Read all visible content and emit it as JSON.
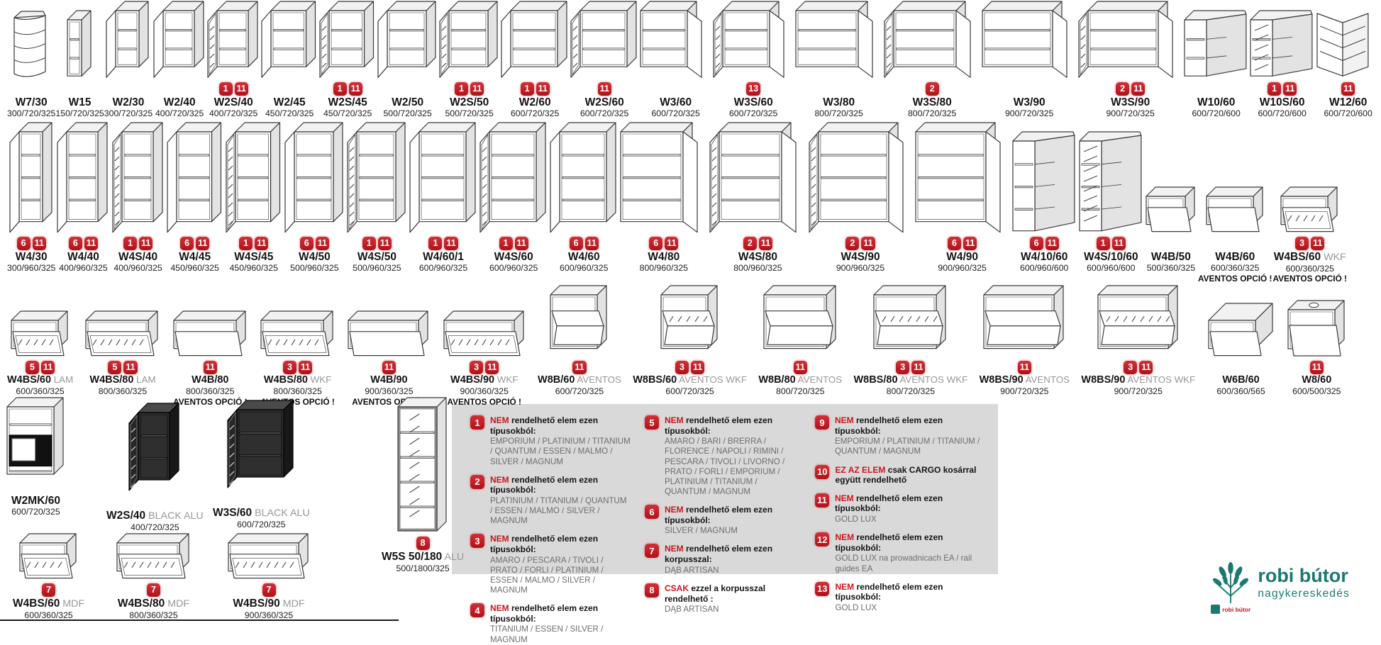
{
  "badge_color": "#c8161d",
  "legend_bg": "#d9d9d9",
  "aventos_note": "AVENTOS OPCIÓ !",
  "rows": [
    {
      "name": "wall-cabinets-row-1",
      "items": [
        {
          "label": "W7/30",
          "dims": "300/720/325",
          "badges": [],
          "kind": "corner-round"
        },
        {
          "label": "W15",
          "dims": "150/720/325",
          "badges": [],
          "kind": "open"
        },
        {
          "label": "W2/30",
          "dims": "300/720/325",
          "badges": [],
          "kind": "door"
        },
        {
          "label": "W2/40",
          "dims": "400/720/325",
          "badges": [],
          "kind": "door"
        },
        {
          "label": "W2S/40",
          "dims": "400/720/325",
          "badges": [
            1,
            11
          ],
          "kind": "glass"
        },
        {
          "label": "W2/45",
          "dims": "450/720/325",
          "badges": [],
          "kind": "door"
        },
        {
          "label": "W2S/45",
          "dims": "450/720/325",
          "badges": [
            1,
            11
          ],
          "kind": "glass"
        },
        {
          "label": "W2/50",
          "dims": "500/720/325",
          "badges": [],
          "kind": "door"
        },
        {
          "label": "W2S/50",
          "dims": "500/720/325",
          "badges": [
            1,
            11
          ],
          "kind": "glass"
        },
        {
          "label": "W2/60",
          "dims": "600/720/325",
          "badges": [
            1,
            11
          ],
          "kind": "door"
        },
        {
          "label": "W2S/60",
          "dims": "600/720/325",
          "badges": [
            11
          ],
          "kind": "glass"
        },
        {
          "label": "W3/60",
          "dims": "600/720/325",
          "badges": [],
          "kind": "door-r"
        },
        {
          "label": "W3S/60",
          "dims": "600/720/325",
          "badges": [
            13
          ],
          "kind": "glass2"
        },
        {
          "label": "W3/80",
          "dims": "800/720/325",
          "badges": [],
          "kind": "door-r"
        },
        {
          "label": "W3S/80",
          "dims": "800/720/325",
          "badges": [
            2
          ],
          "kind": "glass2"
        },
        {
          "label": "W3/90",
          "dims": "900/720/325",
          "badges": [],
          "kind": "door-r"
        },
        {
          "label": "W3S/90",
          "dims": "900/720/325",
          "badges": [
            2,
            11
          ],
          "kind": "glass2"
        },
        {
          "label": "W10/60",
          "dims": "600/720/600",
          "badges": [],
          "kind": "corner-l"
        },
        {
          "label": "W10S/60",
          "dims": "600/720/600",
          "badges": [
            1,
            11
          ],
          "kind": "corner-l-glass"
        },
        {
          "label": "W12/60",
          "dims": "600/720/600",
          "badges": [
            11
          ],
          "kind": "corner-v"
        }
      ]
    },
    {
      "name": "wall-cabinets-row-2",
      "items": [
        {
          "label": "W4/30",
          "dims": "300/960/325",
          "badges": [
            6,
            11
          ],
          "kind": "door"
        },
        {
          "label": "W4/40",
          "dims": "400/960/325",
          "badges": [
            6,
            11
          ],
          "kind": "door"
        },
        {
          "label": "W4S/40",
          "dims": "400/960/325",
          "badges": [
            1,
            11
          ],
          "kind": "glass"
        },
        {
          "label": "W4/45",
          "dims": "450/960/325",
          "badges": [
            6,
            11
          ],
          "kind": "door"
        },
        {
          "label": "W4S/45",
          "dims": "450/960/325",
          "badges": [
            1,
            11
          ],
          "kind": "glass"
        },
        {
          "label": "W4/50",
          "dims": "500/960/325",
          "badges": [
            6,
            11
          ],
          "kind": "door"
        },
        {
          "label": "W4S/50",
          "dims": "500/960/325",
          "badges": [
            1,
            11
          ],
          "kind": "glass"
        },
        {
          "label": "W4/60/1",
          "dims": "600/960/325",
          "badges": [
            1,
            11
          ],
          "kind": "door"
        },
        {
          "label": "W4S/60",
          "dims": "600/960/325",
          "badges": [
            1,
            11
          ],
          "kind": "glass"
        },
        {
          "label": "W4/60",
          "dims": "600/960/325",
          "badges": [
            6,
            11
          ],
          "kind": "door"
        },
        {
          "label": "W4/80",
          "dims": "800/960/325",
          "badges": [
            6,
            11
          ],
          "kind": "door-r"
        },
        {
          "label": "W4S/80",
          "dims": "800/960/325",
          "badges": [
            2,
            11
          ],
          "kind": "glass2"
        },
        {
          "label": "W4S/90",
          "dims": "900/960/325",
          "badges": [
            2,
            11
          ],
          "kind": "glass2"
        },
        {
          "label": "W4/90",
          "dims": "900/960/325",
          "badges": [
            6,
            11
          ],
          "kind": "door-r"
        },
        {
          "label": "W4/10/60",
          "dims": "600/960/600",
          "badges": [
            6,
            11
          ],
          "kind": "corner-l"
        },
        {
          "label": "W4S/10/60",
          "dims": "600/960/600",
          "badges": [
            1,
            11
          ],
          "kind": "corner-l-glass"
        },
        {
          "label": "W4B/50",
          "dims": "500/360/325",
          "badges": [],
          "kind": "flap"
        },
        {
          "label": "W4B/60",
          "dims": "600/360/325",
          "badges": [],
          "kind": "flap",
          "note": "AVENTOS OPCIÓ !"
        },
        {
          "label": "W4BS/60",
          "suffix": "WKF",
          "dims": "600/360/325",
          "badges": [
            3,
            11
          ],
          "kind": "flap-glass",
          "note": "AVENTOS OPCIÓ !"
        }
      ]
    },
    {
      "name": "wall-cabinets-row-3",
      "items": [
        {
          "label": "W4BS/60",
          "suffix": "LAM",
          "dims": "600/360/325",
          "badges": [
            5,
            11
          ],
          "kind": "flap-glass"
        },
        {
          "label": "W4BS/80",
          "suffix": "LAM",
          "dims": "800/360/325",
          "badges": [
            5,
            11
          ],
          "kind": "flap-glass"
        },
        {
          "label": "W4B/80",
          "dims": "800/360/325",
          "badges": [
            11
          ],
          "kind": "flap",
          "note": "AVENTOS OPCIÓ !"
        },
        {
          "label": "W4BS/80",
          "suffix": "WKF",
          "dims": "800/360/325",
          "badges": [
            3,
            11
          ],
          "kind": "flap-glass",
          "note": "AVENTOS OPCIÓ !"
        },
        {
          "label": "W4B/90",
          "dims": "900/360/325",
          "badges": [
            11
          ],
          "kind": "flap",
          "note": "AVENTOS OPCIÓ !"
        },
        {
          "label": "W4BS/90",
          "suffix": "WKF",
          "dims": "900/360/325",
          "badges": [
            3,
            11
          ],
          "kind": "flap-glass",
          "note": "AVENTOS OPCIÓ !"
        },
        {
          "label": "W8B/60",
          "suffix": "AVENTOS",
          "dims": "600/720/325",
          "badges": [
            11
          ],
          "kind": "aventos"
        },
        {
          "label": "W8BS/60",
          "suffix": "AVENTOS WKF",
          "dims": "600/720/325",
          "badges": [
            3,
            11
          ],
          "kind": "aventos-glass"
        },
        {
          "label": "W8B/80",
          "suffix": "AVENTOS",
          "dims": "800/720/325",
          "badges": [
            11
          ],
          "kind": "aventos"
        },
        {
          "label": "W8BS/80",
          "suffix": "AVENTOS WKF",
          "dims": "800/720/325",
          "badges": [
            3,
            11
          ],
          "kind": "aventos-glass"
        },
        {
          "label": "W8BS/90",
          "suffix": "AVENTOS",
          "dims": "900/720/325",
          "badges": [
            11
          ],
          "kind": "aventos"
        },
        {
          "label": "W8BS/90",
          "suffix": "AVENTOS WKF",
          "dims": "900/720/325",
          "badges": [
            3,
            11
          ],
          "kind": "aventos-glass"
        },
        {
          "label": "W6B/60",
          "dims": "600/360/565",
          "badges": [],
          "kind": "deep"
        },
        {
          "label": "W8/60",
          "dims": "600/500/325",
          "badges": [
            11
          ],
          "kind": "flap-hole"
        }
      ]
    },
    {
      "name": "special-cabinets-row-4",
      "items": [
        {
          "label": "W2MK/60",
          "dims": "600/720/325",
          "badges": [],
          "kind": "mw"
        },
        {
          "label": "W2S/40",
          "suffix": "BLACK ALU",
          "dims": "400/720/325",
          "badges": [],
          "kind": "black-glass"
        },
        {
          "label": "W3S/60",
          "suffix": "BLACK ALU",
          "dims": "600/720/325",
          "badges": [],
          "kind": "black-glass"
        },
        {
          "label": "W5S 50/180",
          "suffix": "ALU",
          "dims": "500/1800/325",
          "badges": [
            8
          ],
          "kind": "tall-glass"
        },
        {
          "label": "W4BS/60",
          "suffix": "MDF",
          "dims": "600/360/325",
          "badges": [
            7
          ],
          "kind": "flap-glass"
        },
        {
          "label": "W4BS/80",
          "suffix": "MDF",
          "dims": "800/360/325",
          "badges": [
            7
          ],
          "kind": "flap-glass"
        },
        {
          "label": "W4BS/90",
          "suffix": "MDF",
          "dims": "900/360/325",
          "badges": [
            7
          ],
          "kind": "flap-glass"
        }
      ]
    }
  ],
  "legend": {
    "columns": [
      [
        {
          "num": 1,
          "lead": "NEM",
          "head": "rendelhető elem ezen típusokból:",
          "body": "EMPORIUM / PLATINIUM / TITANIUM / QUANTUM / ESSEN / MALMO / SILVER / MAGNUM"
        },
        {
          "num": 2,
          "lead": "NEM",
          "head": "rendelhető elem ezen típusokból:",
          "body": "PLATINIUM / TITANIUM / QUANTUM / ESSEN / MALMO / SILVER / MAGNUM"
        },
        {
          "num": 3,
          "lead": "NEM",
          "head": "rendelhető elem ezen típusokból:",
          "body": "AMARO / PESCARA / TIVOLI / PRATO / FORLI / PLATINIUM / ESSEN / MALMO / SILVER / MAGNUM"
        },
        {
          "num": 4,
          "lead": "NEM",
          "head": "rendelhető elem ezen típusokból:",
          "body": "TITANIUM /  ESSEN / SILVER / MAGNUM"
        }
      ],
      [
        {
          "num": 5,
          "lead": "NEM",
          "head": "rendelhető elem ezen típusokból:",
          "body": "AMARO / BARI / BRERRA / FLORENCE / NAPOLI / RIMINI / PESCARA / TIVOLI / LIVORNO / PRATO / FORLI / EMPORIUM / PLATINIUM / TITANIUM / QUANTUM / MAGNUM"
        },
        {
          "num": 6,
          "lead": "NEM",
          "head": "rendelhető elem ezen típusokból:",
          "body": "SILVER / MAGNUM"
        },
        {
          "num": 7,
          "lead": "NEM",
          "head": "rendelhető elem ezen korpusszal:",
          "body": "DĄB ARTISAN"
        },
        {
          "num": 8,
          "lead": "CSAK",
          "head": "ezzel a korpusszal rendelhető :",
          "body": "DĄB ARTISAN"
        }
      ],
      [
        {
          "num": 9,
          "lead": "NEM",
          "head": "rendelhető elem ezen típusokból:",
          "body": "EMPORIUM / PLATINIUM / TITANIUM / QUANTUM / MAGNUM"
        },
        {
          "num": 10,
          "lead": "EZ AZ ELEM",
          "head": "csak CARGO kosárral  együtt rendelhető",
          "body": ""
        },
        {
          "num": 11,
          "lead": "NEM",
          "head": "rendelhető elem ezen típusokból:",
          "body": "GOLD LUX"
        },
        {
          "num": 12,
          "lead": "NEM",
          "head": "rendelhető elem ezen típusokból:",
          "body": "GOLD LUX na prowadnicach EA / rail guides EA"
        },
        {
          "num": 13,
          "lead": "NEM",
          "head": "rendelhető elem ezen típusokból:",
          "body": "GOLD LUX"
        }
      ]
    ]
  },
  "logo": {
    "name": "robi bútor",
    "sub": "nagykereskedés",
    "small": "robi bútor",
    "color": "#1a7a70"
  }
}
